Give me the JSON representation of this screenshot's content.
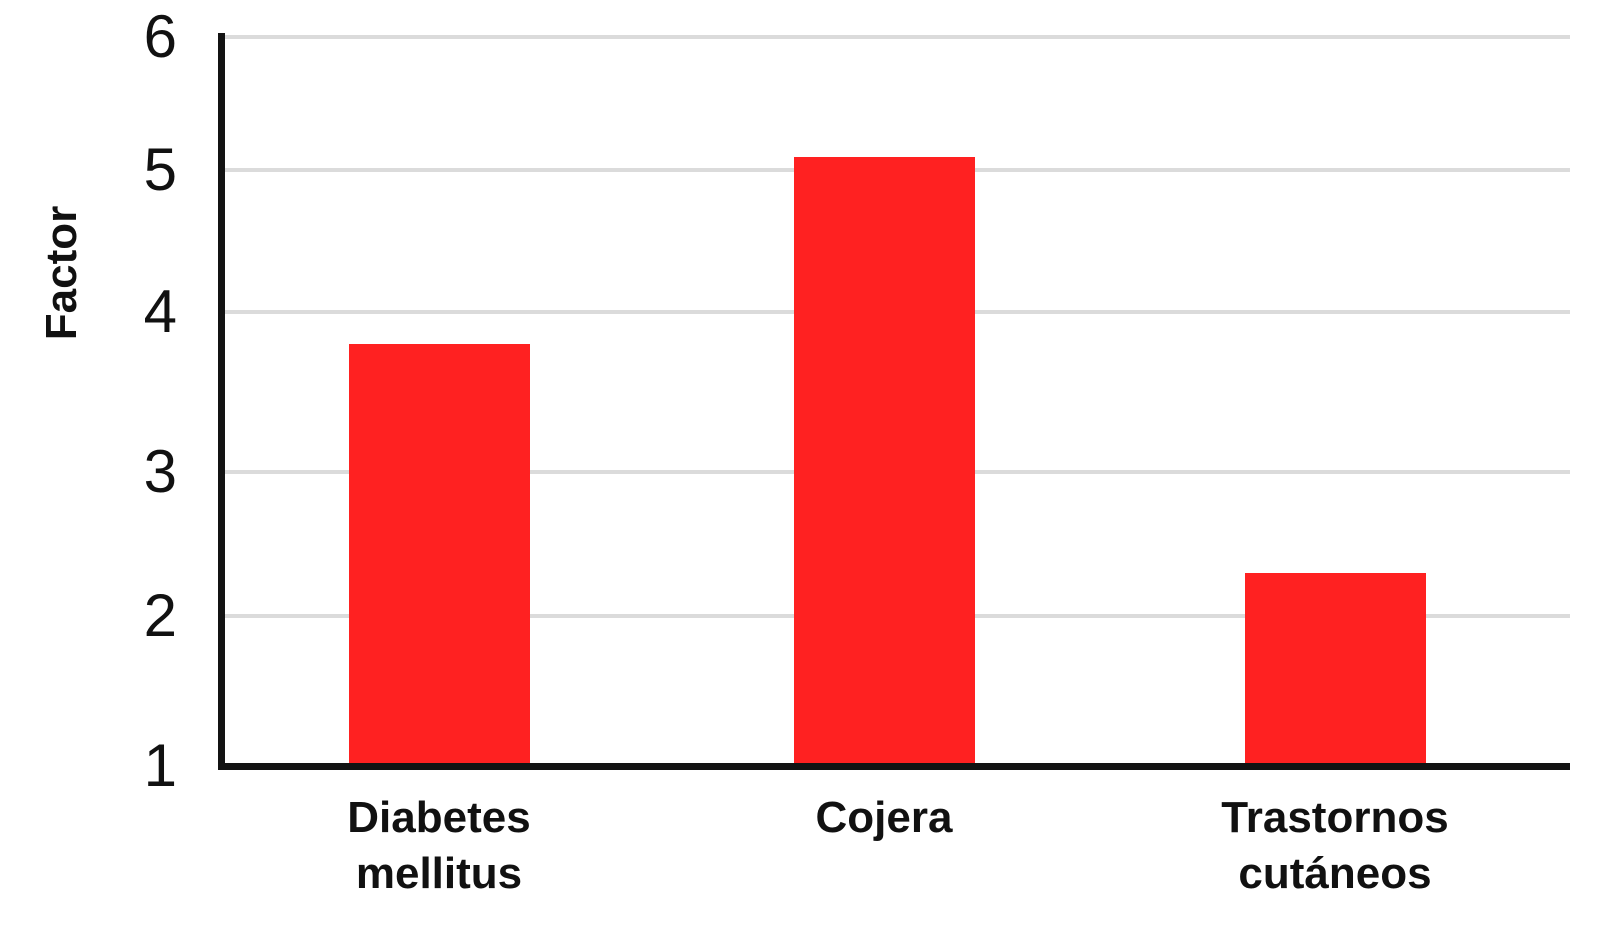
{
  "chart_data": {
    "type": "bar",
    "title": "",
    "ylabel": "Factor",
    "xlabel": "",
    "categories": [
      "Diabetes mellitus",
      "Cojera",
      "Trastornos cutáneos"
    ],
    "values": [
      3.8,
      5.1,
      2.3
    ],
    "yticks": [
      1,
      2,
      3,
      4,
      5,
      6
    ],
    "ylim": [
      1,
      6
    ],
    "grid": "horizontal gridlines on, at integer values 2-6",
    "legend": "none",
    "bar_color": "#FF2121",
    "gridline_color": "#DBDBDB",
    "axis_color": "#131313",
    "text_color": "#111111",
    "background_color": "#FFFFFF"
  }
}
